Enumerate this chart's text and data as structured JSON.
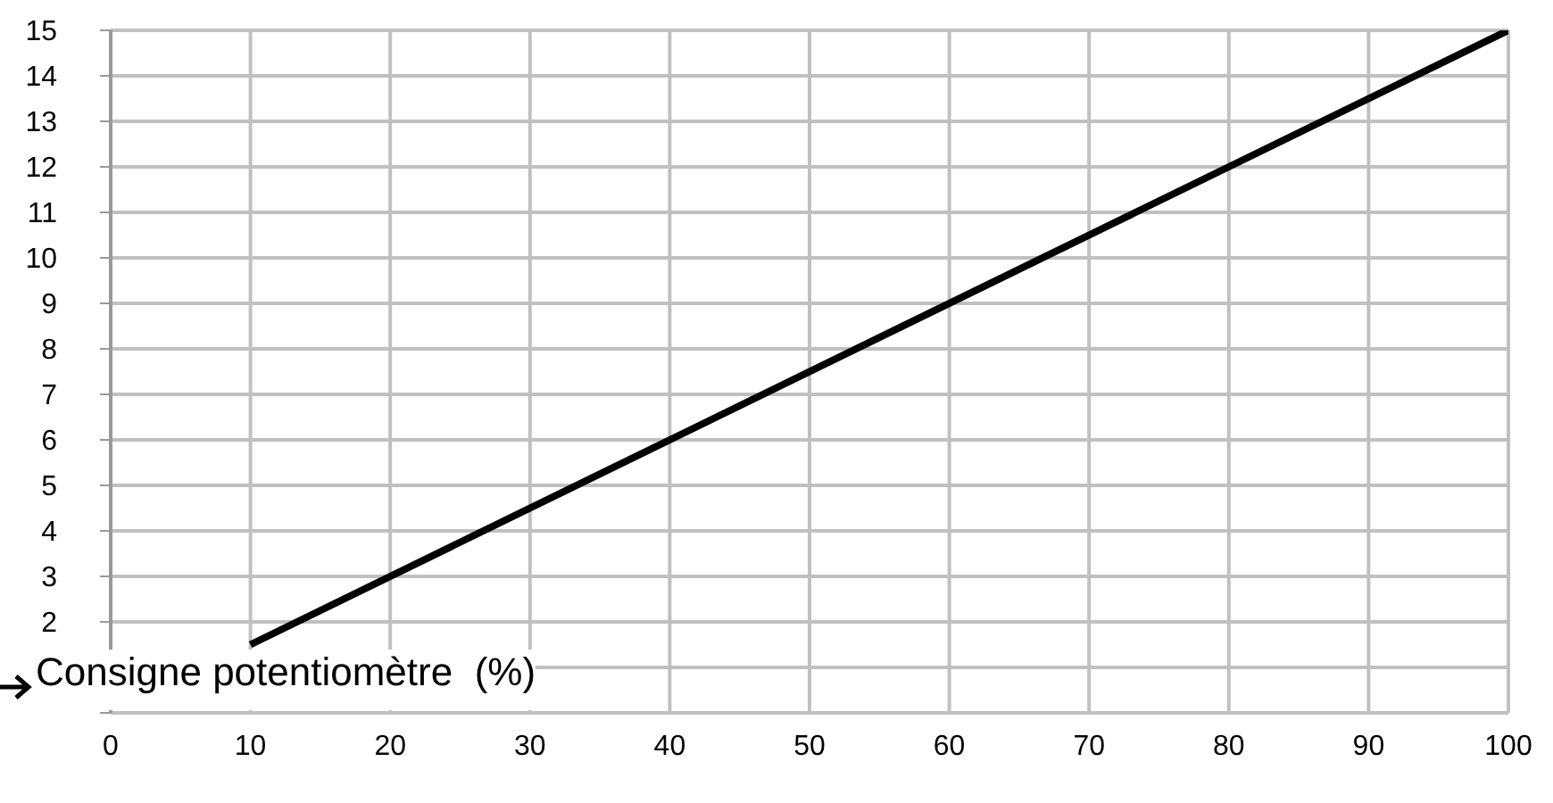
{
  "chart_data": {
    "type": "line",
    "xlabel": "Consigne potentiomètre  (%)",
    "x": [
      10,
      100
    ],
    "series": [
      {
        "color": "#000000",
        "values": [
          1.5,
          15
        ]
      }
    ],
    "xlim": [
      0,
      100
    ],
    "xticks": [
      0,
      10,
      20,
      30,
      40,
      50,
      60,
      70,
      80,
      90,
      100
    ],
    "ylim": [
      0,
      15
    ],
    "yticks": [
      {
        "value": 0,
        "label": null
      },
      {
        "value": 1,
        "label": null
      },
      2,
      3,
      4,
      5,
      6,
      7,
      8,
      9,
      10,
      11,
      12,
      13,
      14,
      15
    ],
    "grid": true,
    "marker": "none",
    "line_style": "solid",
    "legend": false
  }
}
